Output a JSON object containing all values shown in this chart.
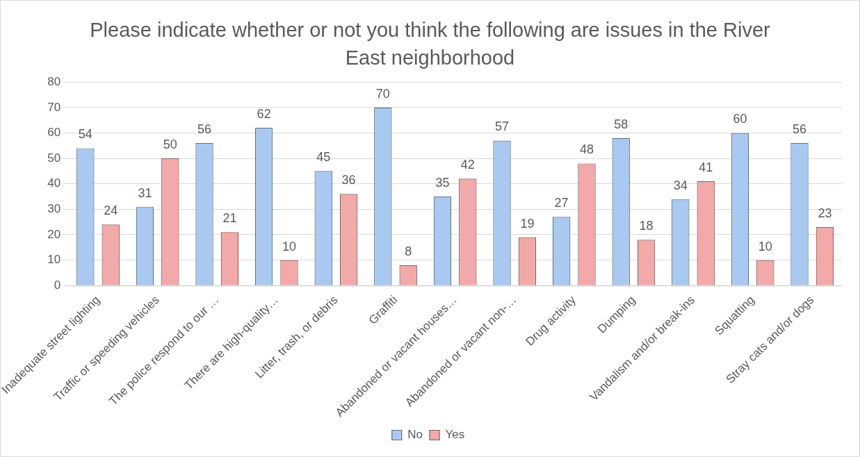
{
  "chart_data": {
    "type": "bar",
    "title": "Please indicate whether or not you think the following are issues in the River East neighborhood",
    "categories": [
      "Inadequate street lighting",
      "Traffic or speeding vehicles",
      "The police respond to our …",
      "There are high-quality…",
      "Litter, trash, or debris",
      "Graffiti",
      "Abandoned or vacant houses…",
      "Abandoned or vacant non-…",
      "Drug activity",
      "Dumping",
      "Vandalism and/or break-ins",
      "Squatting",
      "Stray cats and/or dogs"
    ],
    "series": [
      {
        "name": "No",
        "color": "#a9c9f0",
        "values": [
          54,
          31,
          56,
          62,
          45,
          70,
          35,
          57,
          27,
          58,
          34,
          60,
          56
        ]
      },
      {
        "name": "Yes",
        "color": "#f2a9a9",
        "values": [
          24,
          50,
          21,
          10,
          36,
          8,
          42,
          19,
          48,
          18,
          41,
          10,
          23
        ]
      }
    ],
    "ylim": [
      0,
      80
    ],
    "yticks": [
      0,
      10,
      20,
      30,
      40,
      50,
      60,
      70,
      80
    ],
    "grid": "y",
    "legend": "bottom",
    "data_labels": true
  }
}
